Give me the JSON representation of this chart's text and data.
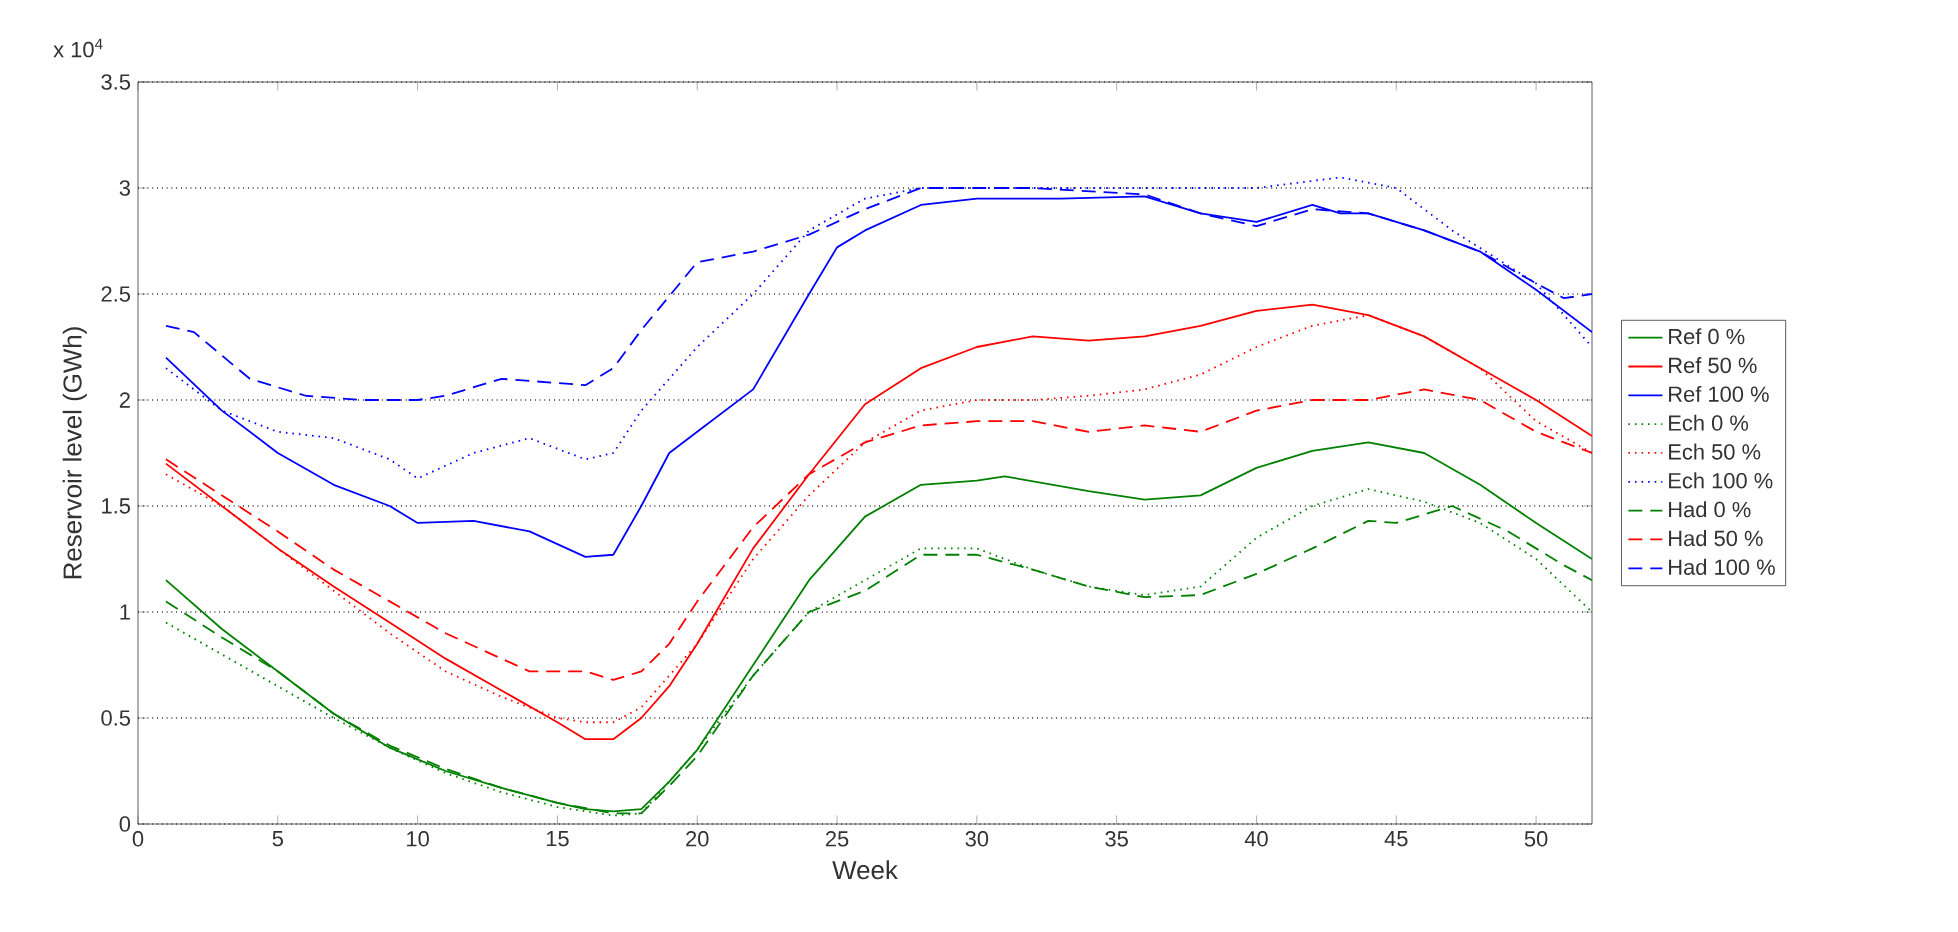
{
  "chart_data": {
    "type": "line",
    "xlabel": "Week",
    "ylabel": "Reservoir level (GWh)",
    "annotations": [
      "x 10$^{4}$"
    ],
    "xlim": [
      0,
      52
    ],
    "ylim": [
      0,
      3.5
    ],
    "xticks": [
      0,
      5,
      10,
      15,
      20,
      25,
      30,
      35,
      40,
      45,
      50
    ],
    "yticks": [
      0,
      0.5,
      1,
      1.5,
      2,
      2.5,
      3,
      3.5
    ],
    "grid": "y",
    "legend": "right",
    "marker": "none",
    "series": [
      {
        "name": "Ref 0 %",
        "color": "#008000",
        "line_style": "solid",
        "x": [
          1,
          3,
          5,
          7,
          9,
          11,
          13,
          15,
          16,
          17,
          18,
          19,
          20,
          22,
          24,
          26,
          28,
          30,
          31,
          34,
          36,
          38,
          40,
          42,
          44,
          46,
          48,
          50,
          52
        ],
        "values": [
          1.15,
          0.92,
          0.72,
          0.52,
          0.36,
          0.25,
          0.17,
          0.1,
          0.07,
          0.06,
          0.07,
          0.2,
          0.35,
          0.75,
          1.15,
          1.45,
          1.6,
          1.62,
          1.64,
          1.57,
          1.53,
          1.55,
          1.68,
          1.76,
          1.8,
          1.75,
          1.6,
          1.42,
          1.25
        ]
      },
      {
        "name": "Ref 50 %",
        "color": "#ff0000",
        "line_style": "solid",
        "x": [
          1,
          3,
          5,
          7,
          9,
          11,
          13,
          15,
          16,
          17,
          18,
          19,
          20,
          22,
          24,
          26,
          28,
          30,
          32,
          34,
          36,
          38,
          40,
          42,
          44,
          46,
          48,
          50,
          52
        ],
        "values": [
          1.7,
          1.5,
          1.3,
          1.12,
          0.95,
          0.78,
          0.63,
          0.48,
          0.4,
          0.4,
          0.5,
          0.65,
          0.85,
          1.3,
          1.65,
          1.98,
          2.15,
          2.25,
          2.3,
          2.28,
          2.3,
          2.35,
          2.42,
          2.45,
          2.4,
          2.3,
          2.15,
          2.0,
          1.83
        ]
      },
      {
        "name": "Ref 100 %",
        "color": "#0000ff",
        "line_style": "solid",
        "x": [
          1,
          3,
          5,
          7,
          9,
          10,
          12,
          14,
          16,
          17,
          18,
          19,
          20,
          22,
          24,
          25,
          26,
          28,
          30,
          33,
          36,
          38,
          40,
          42,
          43,
          44,
          46,
          48,
          50,
          52
        ],
        "values": [
          2.2,
          1.95,
          1.75,
          1.6,
          1.5,
          1.42,
          1.43,
          1.38,
          1.26,
          1.27,
          1.5,
          1.75,
          1.85,
          2.05,
          2.5,
          2.72,
          2.8,
          2.92,
          2.95,
          2.95,
          2.96,
          2.88,
          2.84,
          2.92,
          2.88,
          2.88,
          2.8,
          2.7,
          2.52,
          2.32
        ]
      },
      {
        "name": "Ech 0 %",
        "color": "#008000",
        "line_style": "dotted",
        "x": [
          1,
          3,
          5,
          7,
          9,
          11,
          13,
          15,
          17,
          18,
          20,
          22,
          24,
          26,
          28,
          30,
          32,
          34,
          36,
          38,
          40,
          42,
          44,
          46,
          48,
          50,
          52
        ],
        "values": [
          0.95,
          0.8,
          0.65,
          0.5,
          0.36,
          0.24,
          0.15,
          0.08,
          0.04,
          0.05,
          0.35,
          0.7,
          1.0,
          1.15,
          1.3,
          1.3,
          1.2,
          1.12,
          1.08,
          1.12,
          1.35,
          1.5,
          1.58,
          1.52,
          1.42,
          1.25,
          1.0
        ]
      },
      {
        "name": "Ech 50 %",
        "color": "#ff0000",
        "line_style": "dotted",
        "x": [
          1,
          3,
          5,
          7,
          9,
          11,
          13,
          15,
          16,
          17,
          18,
          20,
          22,
          24,
          26,
          28,
          30,
          32,
          34,
          36,
          38,
          40,
          42,
          44,
          46,
          48,
          50,
          52
        ],
        "values": [
          1.65,
          1.5,
          1.3,
          1.1,
          0.9,
          0.72,
          0.6,
          0.5,
          0.48,
          0.48,
          0.55,
          0.85,
          1.25,
          1.55,
          1.8,
          1.95,
          2.0,
          2.0,
          2.02,
          2.05,
          2.12,
          2.25,
          2.35,
          2.4,
          2.3,
          2.15,
          1.9,
          1.75
        ]
      },
      {
        "name": "Ech 100 %",
        "color": "#0000ff",
        "line_style": "dotted",
        "x": [
          1,
          3,
          5,
          7,
          9,
          10,
          12,
          14,
          16,
          17,
          18,
          20,
          22,
          24,
          26,
          28,
          32,
          36,
          40,
          43,
          45,
          47,
          50,
          52
        ],
        "values": [
          2.15,
          1.95,
          1.85,
          1.82,
          1.72,
          1.63,
          1.75,
          1.82,
          1.72,
          1.75,
          1.95,
          2.25,
          2.5,
          2.8,
          2.95,
          3.0,
          3.0,
          3.0,
          3.0,
          3.05,
          3.0,
          2.8,
          2.55,
          2.25
        ]
      },
      {
        "name": "Had 0 %",
        "color": "#008000",
        "line_style": "dashed",
        "x": [
          1,
          3,
          5,
          7,
          9,
          11,
          13,
          15,
          17,
          18,
          19,
          20,
          22,
          24,
          26,
          28,
          30,
          32,
          34,
          36,
          38,
          40,
          42,
          44,
          45,
          47,
          49,
          51,
          52
        ],
        "values": [
          1.05,
          0.88,
          0.72,
          0.52,
          0.37,
          0.26,
          0.17,
          0.1,
          0.05,
          0.05,
          0.18,
          0.32,
          0.7,
          1.0,
          1.1,
          1.27,
          1.27,
          1.2,
          1.12,
          1.07,
          1.08,
          1.18,
          1.3,
          1.43,
          1.42,
          1.5,
          1.38,
          1.22,
          1.15
        ]
      },
      {
        "name": "Had 50 %",
        "color": "#ff0000",
        "line_style": "dashed",
        "x": [
          1,
          3,
          5,
          7,
          9,
          11,
          13,
          14,
          16,
          17,
          18,
          19,
          20,
          22,
          24,
          26,
          28,
          30,
          32,
          34,
          36,
          38,
          40,
          42,
          44,
          46,
          48,
          50,
          52
        ],
        "values": [
          1.72,
          1.55,
          1.38,
          1.2,
          1.05,
          0.9,
          0.78,
          0.72,
          0.72,
          0.68,
          0.72,
          0.85,
          1.05,
          1.4,
          1.65,
          1.8,
          1.88,
          1.9,
          1.9,
          1.85,
          1.88,
          1.85,
          1.95,
          2.0,
          2.0,
          2.05,
          2.0,
          1.85,
          1.75
        ]
      },
      {
        "name": "Had 100 %",
        "color": "#0000ff",
        "line_style": "dashed",
        "x": [
          1,
          2,
          4,
          6,
          8,
          10,
          11,
          13,
          15,
          16,
          17,
          18,
          20,
          22,
          24,
          26,
          28,
          32,
          36,
          38,
          40,
          42,
          44,
          46,
          48,
          50,
          51,
          52
        ],
        "values": [
          2.35,
          2.32,
          2.1,
          2.02,
          2.0,
          2.0,
          2.02,
          2.1,
          2.08,
          2.07,
          2.15,
          2.33,
          2.65,
          2.7,
          2.78,
          2.9,
          3.0,
          3.0,
          2.97,
          2.88,
          2.82,
          2.9,
          2.88,
          2.8,
          2.7,
          2.55,
          2.48,
          2.5
        ]
      }
    ]
  }
}
